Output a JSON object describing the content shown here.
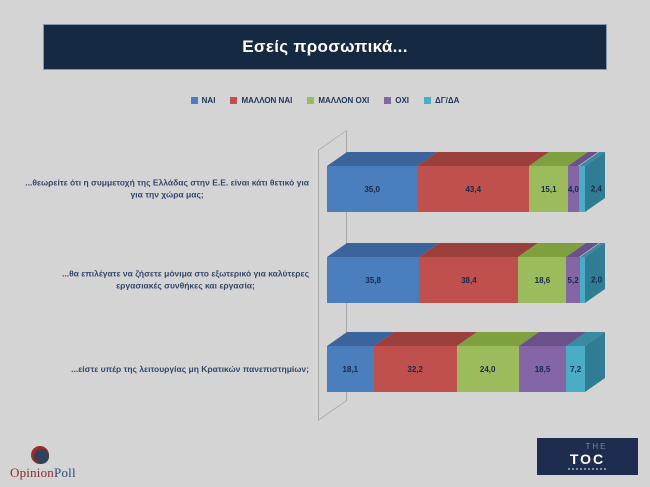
{
  "title": "Εσείς προσωπικά...",
  "chart_data": {
    "type": "bar",
    "stacked": true,
    "orientation": "horizontal",
    "style": "3d",
    "unit": "percent",
    "legend_position": "top-center",
    "xlim": [
      0,
      100
    ],
    "grid": false,
    "categories": [
      "...θεωρείτε ότι η συμμετοχή της Ελλάδας στην Ε.Ε. είναι κάτι θετικό για\nγια την χώρα μας;",
      "...θα επιλέγατε να ζήσετε μόνιμα στο εξωτερικό για καλύτερες\nεργασιακές συνθήκες και εργασία;",
      "...είστε υπέρ της λειτουργίας μη Κρατικών πανεπιστημίων;"
    ],
    "series": [
      {
        "name": "ΝΑΙ",
        "color": "#4a7ebd",
        "top_color": "#3a649b",
        "values": [
          35.0,
          35.8,
          18.1
        ]
      },
      {
        "name": "ΜΑΛΛΟΝ ΝΑΙ",
        "color": "#bf504d",
        "top_color": "#9c403e",
        "values": [
          43.4,
          38.4,
          32.2
        ]
      },
      {
        "name": "ΜΑΛΛΟΝ ΟΧΙ",
        "color": "#9cbb5c",
        "top_color": "#7fa03f",
        "values": [
          15.1,
          18.6,
          24.0
        ]
      },
      {
        "name": "ΟΧΙ",
        "color": "#8465a5",
        "top_color": "#6b5189",
        "values": [
          4.0,
          5.2,
          18.5
        ]
      },
      {
        "name": "ΔΓ/ΔΑ",
        "color": "#4bacc6",
        "top_color": "#3a8ba2",
        "values": [
          2.4,
          2.0,
          7.2
        ]
      }
    ],
    "value_labels": [
      [
        "35,0",
        "43,4",
        "15,1",
        "4,0",
        "2,4"
      ],
      [
        "35,8",
        "38,4",
        "18,6",
        "5,2",
        "2,0"
      ],
      [
        "18,1",
        "32,2",
        "24,0",
        "18,5",
        "7,2"
      ]
    ],
    "cap_color": "#2f7d95"
  },
  "footer": {
    "opinionpoll": {
      "part1": "Opinion",
      "part2": "Poll"
    },
    "toc": {
      "the": "THE",
      "toc": "TOC"
    }
  },
  "colors": {
    "background": "#d4d4d4",
    "banner": "#152a42",
    "text_navy": "#1f3557"
  }
}
